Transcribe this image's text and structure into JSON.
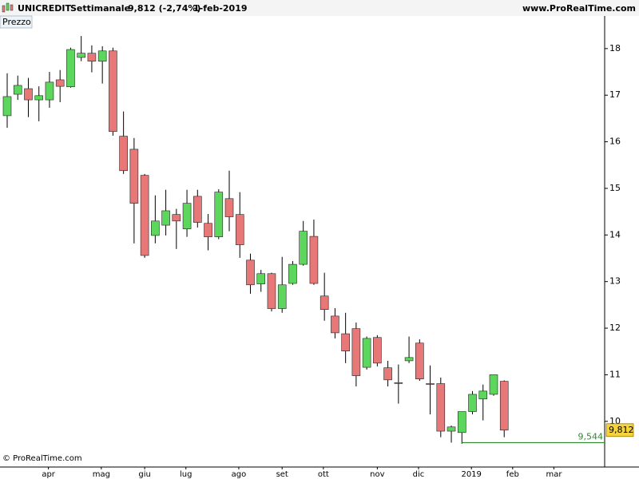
{
  "header": {
    "symbol": "UNICREDIT",
    "period": "Settimanale",
    "quote": "9,812 (-2,74%)",
    "date": "1-feb-2019",
    "site": "www.ProRealTime.com"
  },
  "chart_data": {
    "type": "candlestick",
    "panel_label": "Prezzo",
    "copyright": "© ProRealTime.com",
    "open": [
      16.56,
      17.02,
      17.14,
      16.9,
      16.9,
      17.33,
      17.18,
      17.81,
      17.9,
      17.73,
      17.95,
      16.12,
      15.84,
      15.28,
      13.99,
      14.21,
      14.44,
      14.13,
      14.83,
      14.25,
      13.96,
      14.78,
      14.44,
      13.46,
      12.95,
      13.17,
      12.42,
      12.96,
      13.37,
      13.97,
      12.69,
      12.26,
      11.88,
      11.99,
      11.16,
      11.8,
      11.15,
      10.83,
      11.3,
      11.68,
      10.81,
      10.81,
      9.79,
      9.76,
      10.21,
      10.48,
      10.58,
      10.86
    ],
    "high": [
      17.47,
      17.42,
      17.37,
      17.19,
      17.5,
      17.54,
      18.02,
      18.27,
      18.07,
      18.05,
      18.02,
      16.65,
      16.08,
      15.31,
      14.85,
      14.97,
      14.56,
      14.97,
      14.97,
      14.45,
      14.98,
      15.38,
      14.92,
      13.6,
      13.25,
      13.19,
      13.53,
      13.44,
      14.3,
      14.33,
      13.19,
      12.43,
      12.33,
      12.12,
      11.82,
      11.85,
      11.3,
      11.22,
      11.82,
      11.76,
      11.2,
      10.94,
      9.91,
      10.21,
      10.65,
      10.79,
      11.0,
      10.88
    ],
    "low": [
      16.3,
      16.9,
      16.53,
      16.44,
      16.73,
      16.85,
      17.16,
      17.73,
      17.49,
      17.25,
      16.13,
      15.31,
      13.82,
      13.51,
      13.82,
      13.99,
      13.7,
      13.96,
      14.16,
      13.67,
      13.91,
      14.08,
      13.51,
      12.74,
      12.78,
      12.36,
      12.33,
      12.93,
      13.34,
      12.93,
      12.16,
      11.78,
      11.25,
      10.75,
      11.11,
      11.18,
      10.75,
      10.38,
      11.25,
      10.87,
      10.15,
      9.66,
      9.544,
      9.52,
      10.15,
      10.02,
      10.55,
      9.66
    ],
    "close": [
      16.97,
      17.21,
      16.9,
      16.99,
      17.28,
      17.19,
      17.98,
      17.9,
      17.73,
      17.95,
      16.22,
      15.38,
      14.68,
      13.56,
      14.3,
      14.52,
      14.3,
      14.68,
      14.27,
      13.96,
      14.92,
      14.39,
      13.79,
      12.93,
      13.17,
      12.42,
      12.93,
      13.37,
      14.08,
      12.96,
      12.4,
      11.9,
      11.51,
      10.98,
      11.78,
      11.25,
      10.89,
      10.82,
      11.37,
      10.91,
      10.8,
      9.79,
      9.88,
      10.21,
      10.58,
      10.65,
      11.0,
      9.812
    ],
    "up_color": "#5cd65c",
    "down_color": "#e87878",
    "xlim": [
      -0.68,
      56.5
    ],
    "ylim": [
      9.02,
      18.7
    ],
    "yticks": [
      10,
      11,
      12,
      13,
      14,
      15,
      16,
      17,
      18
    ],
    "xticks": [
      {
        "value": 3.9,
        "label": "apr"
      },
      {
        "value": 8.9,
        "label": "mag"
      },
      {
        "value": 13.0,
        "label": "giu"
      },
      {
        "value": 16.9,
        "label": "lug"
      },
      {
        "value": 21.9,
        "label": "ago"
      },
      {
        "value": 26.0,
        "label": "set"
      },
      {
        "value": 29.9,
        "label": "ott"
      },
      {
        "value": 35.0,
        "label": "nov"
      },
      {
        "value": 38.9,
        "label": "dic"
      },
      {
        "value": 43.9,
        "label": "2019"
      },
      {
        "value": 47.8,
        "label": "feb"
      },
      {
        "value": 51.7,
        "label": "mar"
      }
    ],
    "last_price": {
      "value": 9.812,
      "label": "9,812"
    },
    "support": {
      "value": 9.544,
      "label": "9,544",
      "color": "#2e8b2e"
    }
  }
}
